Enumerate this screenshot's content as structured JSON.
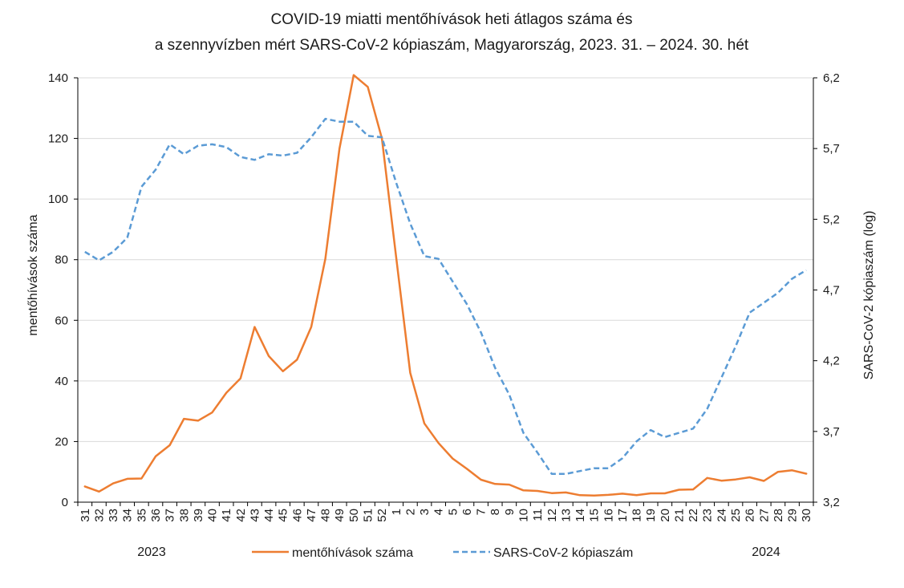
{
  "chart_data": {
    "type": "line",
    "title": [
      "COVID-19 miatti mentőhívások heti átlagos száma és",
      "a szennyvízben mért SARS-CoV-2 kópiaszám, Magyarország, 2023. 31. – 2024. 30. hét"
    ],
    "xlabel": "",
    "ylabel_left": "mentőhívások száma",
    "ylabel_right": "SARS-CoV-2 kópiaszám (log)",
    "ylim_left": [
      0,
      140
    ],
    "ylim_right": [
      3.2,
      6.2
    ],
    "yticks_left": [
      "0",
      "20",
      "40",
      "60",
      "80",
      "100",
      "120",
      "140"
    ],
    "yticks_right": [
      "3,2",
      "3,7",
      "4,2",
      "4,7",
      "5,2",
      "5,7",
      "6,2"
    ],
    "categories": [
      "31",
      "32",
      "33",
      "34",
      "35",
      "36",
      "37",
      "38",
      "39",
      "40",
      "41",
      "42",
      "43",
      "44",
      "45",
      "46",
      "47",
      "48",
      "49",
      "50",
      "51",
      "52",
      "1",
      "2",
      "3",
      "4",
      "5",
      "6",
      "7",
      "8",
      "9",
      "10",
      "11",
      "12",
      "13",
      "14",
      "15",
      "16",
      "17",
      "18",
      "19",
      "20",
      "21",
      "22",
      "23",
      "24",
      "25",
      "26",
      "27",
      "28",
      "29",
      "30"
    ],
    "year_labels": [
      "2023",
      "2024"
    ],
    "grid": true,
    "legend_position": "bottom",
    "series": [
      {
        "name": "mentőhívások száma",
        "axis": "left",
        "color": "#ED7D31",
        "style": "solid",
        "values": [
          5.2,
          3.5,
          6.2,
          7.7,
          7.8,
          15.1,
          18.8,
          27.5,
          26.9,
          29.6,
          36.1,
          40.8,
          57.8,
          48.2,
          43.2,
          47.0,
          57.8,
          80.3,
          116.6,
          140.9,
          137.0,
          120.0,
          81.0,
          42.7,
          26.0,
          19.5,
          14.4,
          11.0,
          7.4,
          6.0,
          5.8,
          3.9,
          3.7,
          3.0,
          3.2,
          2.3,
          2.2,
          2.4,
          2.8,
          2.3,
          2.9,
          2.9,
          4.1,
          4.2,
          8.0,
          7.1,
          7.5,
          8.2,
          7.0,
          10.0,
          10.5,
          9.4
        ]
      },
      {
        "name": "SARS-CoV-2 kópiaszám",
        "axis": "right",
        "color": "#5B9BD5",
        "style": "dashed",
        "values": [
          4.97,
          4.91,
          4.97,
          5.07,
          5.43,
          5.55,
          5.73,
          5.66,
          5.72,
          5.73,
          5.71,
          5.64,
          5.62,
          5.66,
          5.65,
          5.67,
          5.78,
          5.91,
          5.89,
          5.89,
          5.79,
          5.78,
          5.46,
          5.17,
          4.94,
          4.92,
          4.76,
          4.6,
          4.4,
          4.15,
          3.96,
          3.69,
          3.55,
          3.4,
          3.4,
          3.42,
          3.44,
          3.44,
          3.51,
          3.63,
          3.71,
          3.66,
          3.69,
          3.72,
          3.86,
          4.08,
          4.3,
          4.54,
          4.61,
          4.68,
          4.78,
          4.84
        ]
      }
    ]
  }
}
